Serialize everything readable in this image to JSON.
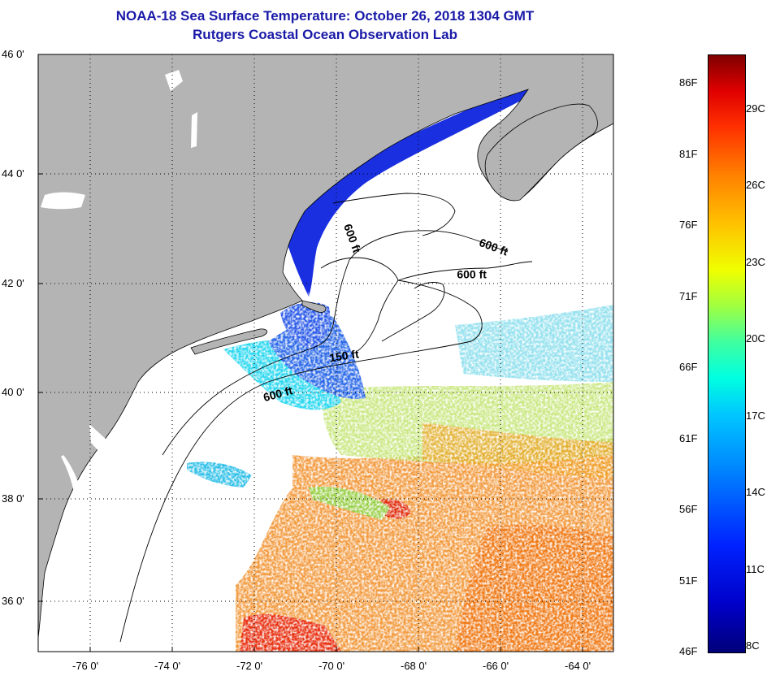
{
  "header": {
    "title": "NOAA-18 Sea Surface Temperature:  October 26, 2018 1304 GMT",
    "subtitle": "Rutgers Coastal Ocean Observation Lab"
  },
  "map": {
    "lon_range": [
      -77,
      -63
    ],
    "lat_range": [
      35,
      46
    ],
    "latitude_labels": [
      {
        "value": 46,
        "text": "46 0'"
      },
      {
        "value": 44,
        "text": "44 0'"
      },
      {
        "value": 42,
        "text": "42 0'"
      },
      {
        "value": 40,
        "text": "40 0'"
      },
      {
        "value": 38,
        "text": "38 0'"
      },
      {
        "value": 36,
        "text": "36 0'"
      }
    ],
    "longitude_labels": [
      {
        "value": -76,
        "text": "-76 0'"
      },
      {
        "value": -74,
        "text": "-74 0'"
      },
      {
        "value": -72,
        "text": "-72 0'"
      },
      {
        "value": -70,
        "text": "-70 0'"
      },
      {
        "value": -68,
        "text": "-68 0'"
      },
      {
        "value": -66,
        "text": "-66 0'"
      },
      {
        "value": -64,
        "text": "-64 0'"
      }
    ],
    "depth_labels": [
      {
        "text": "600 ft",
        "lon": -69.7,
        "lat": 42.8,
        "angle": 70
      },
      {
        "text": "600 ft",
        "lon": -66.2,
        "lat": 42.6,
        "angle": 20
      },
      {
        "text": "600 ft",
        "lon": -66.7,
        "lat": 42.1,
        "angle": 0
      },
      {
        "text": "150 ft",
        "lon": -69.8,
        "lat": 40.6,
        "angle": -8
      },
      {
        "text": "600 ft",
        "lon": -71.4,
        "lat": 39.9,
        "angle": -15
      }
    ],
    "colors": {
      "land": "#b4b4b4",
      "ocean": "#ffffff",
      "grid": "#000000",
      "coast": "#000000"
    }
  },
  "colorbar": {
    "range_f": [
      46,
      88
    ],
    "fahrenheit": [
      {
        "value": 86,
        "text": "86F"
      },
      {
        "value": 81,
        "text": "81F"
      },
      {
        "value": 76,
        "text": "76F"
      },
      {
        "value": 71,
        "text": "71F"
      },
      {
        "value": 66,
        "text": "66F"
      },
      {
        "value": 61,
        "text": "61F"
      },
      {
        "value": 56,
        "text": "56F"
      },
      {
        "value": 51,
        "text": "51F"
      },
      {
        "value": 46,
        "text": "46F"
      }
    ],
    "celsius": [
      {
        "value": 29,
        "text": "29C"
      },
      {
        "value": 26,
        "text": "26C"
      },
      {
        "value": 23,
        "text": "23C"
      },
      {
        "value": 20,
        "text": "20C"
      },
      {
        "value": 17,
        "text": "17C"
      },
      {
        "value": 14,
        "text": "14C"
      },
      {
        "value": 11,
        "text": "11C"
      },
      {
        "value": 8,
        "text": "8C"
      }
    ]
  }
}
